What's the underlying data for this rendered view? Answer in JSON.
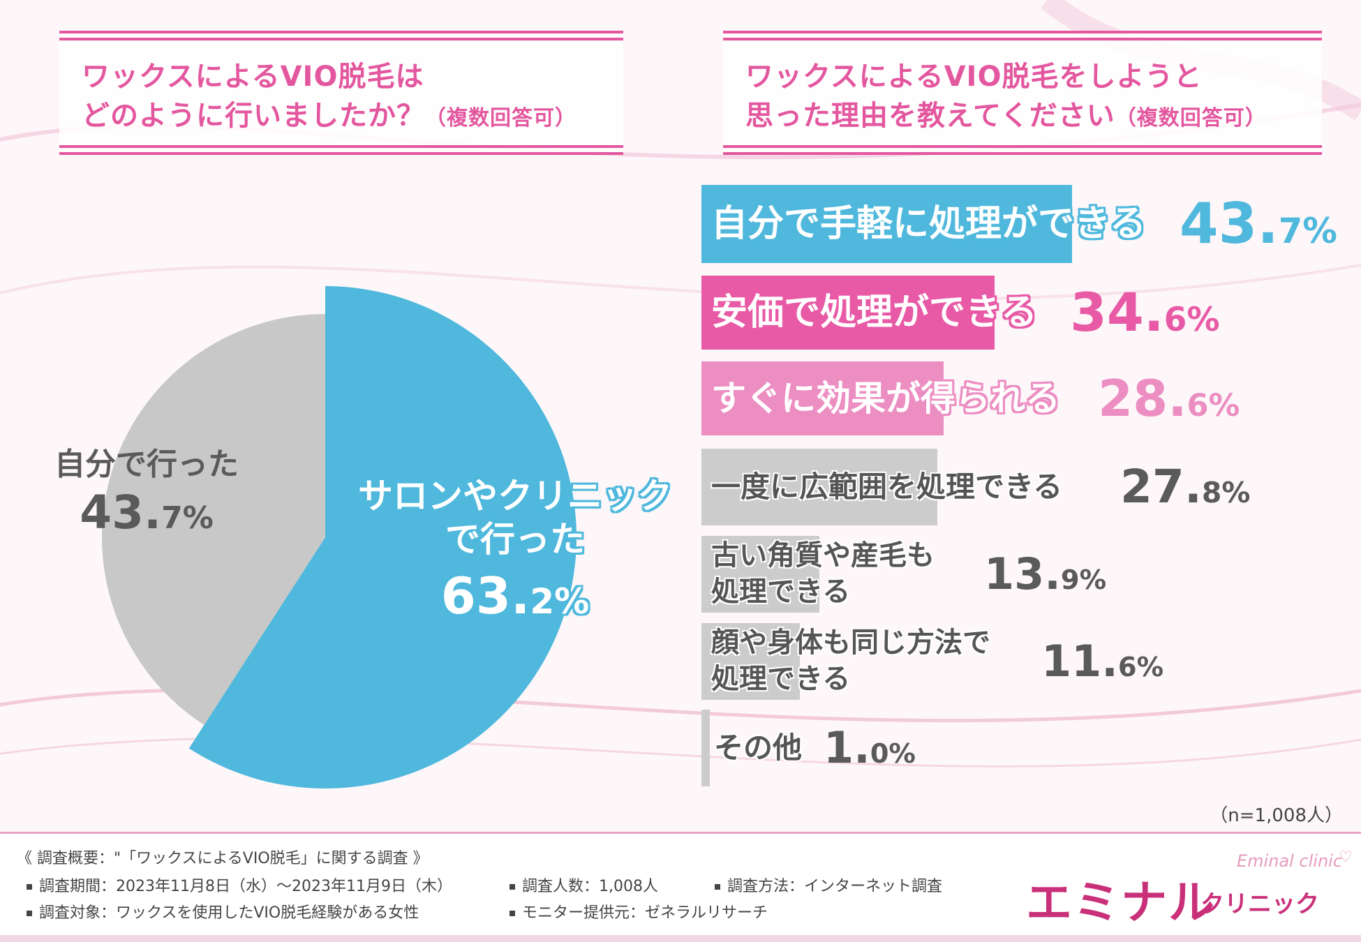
{
  "left_question": {
    "line1": "ワックスによるVIO脱毛は",
    "line2": "どのように行いましたか？",
    "note": "（複数回答可）"
  },
  "right_question": {
    "line1": "ワックスによるVIO脱毛をしようと",
    "line2": "思った理由を教えてください",
    "note": "（複数回答可）"
  },
  "chart_data": [
    {
      "type": "pie",
      "title": "ワックスによるVIO脱毛はどのように行いましたか？（複数回答可）",
      "labels": [
        "サロンやクリニックで行った",
        "自分で行った"
      ],
      "values": [
        63.2,
        43.7
      ],
      "display": [
        "63.2%",
        "43.7%"
      ],
      "colors": [
        "#4fb8dc",
        "#c8c8c8"
      ]
    },
    {
      "type": "bar",
      "orientation": "horizontal",
      "title": "ワックスによるVIO脱毛をしようと思った理由を教えてください（複数回答可）",
      "categories": [
        "自分で手軽に処理ができる",
        "安価で処理ができる",
        "すぐに効果が得られる",
        "一度に広範囲を処理できる",
        "古い角質や産毛も処理できる",
        "顔や身体も同じ方法で処理できる",
        "その他"
      ],
      "values": [
        43.7,
        34.6,
        28.6,
        27.8,
        13.9,
        11.6,
        1.0
      ],
      "xlim": [
        0,
        100
      ],
      "colors": [
        "#4fb8dc",
        "#e85aa6",
        "#ec8ec2",
        "#cccccc",
        "#cccccc",
        "#cccccc",
        "#cccccc"
      ]
    }
  ],
  "pie_labels": {
    "blue_line1": "サロンやクリニック",
    "blue_line2": "で行った",
    "blue_pct_int": "63.",
    "blue_pct_dec": "2%",
    "grey_line1": "自分で行った",
    "grey_pct_int": "43.",
    "grey_pct_dec": "7%"
  },
  "bars": [
    {
      "label": "自分で手軽に処理ができる",
      "int": "43.",
      "dec": "7%"
    },
    {
      "label": "安価で処理ができる",
      "int": "34.",
      "dec": "6%"
    },
    {
      "label": "すぐに効果が得られる",
      "int": "28.",
      "dec": "6%"
    },
    {
      "label": "一度に広範囲を処理できる",
      "int": "27.",
      "dec": "8%"
    },
    {
      "label_line1": "古い角質や産毛も",
      "label_line2": "処理できる",
      "int": "13.",
      "dec": "9%"
    },
    {
      "label_line1": "顔や身体も同じ方法で",
      "label_line2": "処理できる",
      "int": "11.",
      "dec": "6%"
    },
    {
      "label": "その他",
      "int": "1.",
      "dec": "0%"
    }
  ],
  "sample_size": "（n=1,008人）",
  "footer": {
    "title": "《 調査概要：\"「ワックスによるVIO脱毛」に関する調査 》",
    "period": "調査期間：2023年11月8日（水）～2023年11月9日（木）",
    "count": "調査人数：1,008人",
    "method": "調査方法：インターネット調査",
    "target": "調査対象：ワックスを使用したVIO脱毛経験がある女性",
    "provider": "モニター提供元：ゼネラルリサーチ"
  },
  "logo": {
    "main": "エミナル",
    "sub": "クリニック",
    "en": "Eminal clinic",
    "heart": "♡"
  }
}
